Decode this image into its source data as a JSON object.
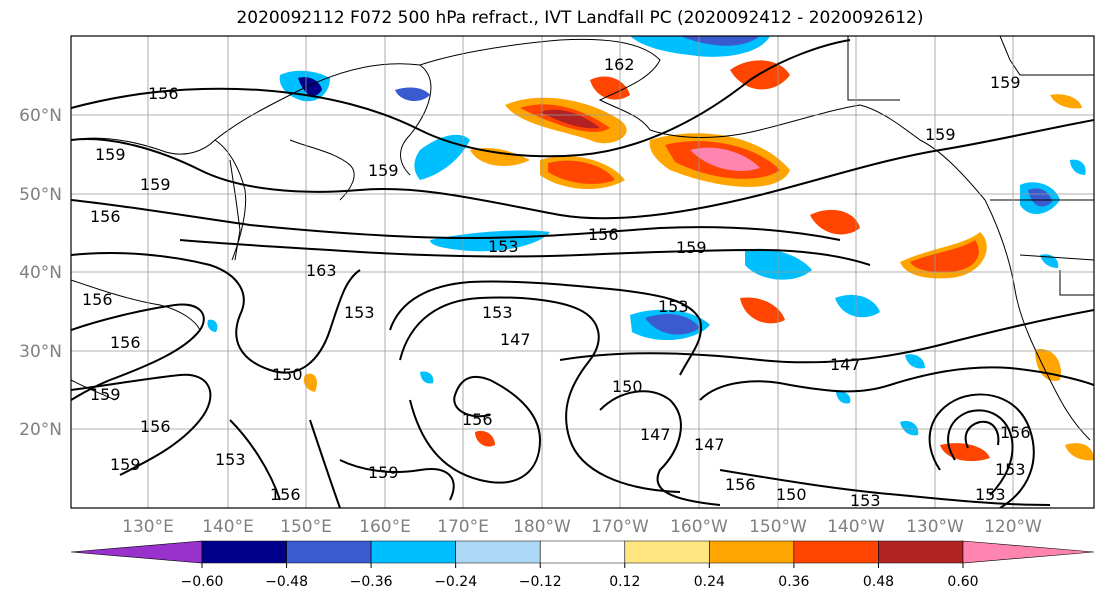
{
  "title": "2020092112 F072 500 hPa refract., IVT Landfall PC (2020092412 - 2020092612)",
  "lat_labels": [
    "60°N",
    "50°N",
    "40°N",
    "30°N",
    "20°N"
  ],
  "lon_labels": [
    "130°E",
    "140°E",
    "150°E",
    "160°E",
    "170°E",
    "180°W",
    "170°W",
    "160°W",
    "150°W",
    "140°W",
    "130°W",
    "120°W"
  ],
  "contour_labels": [
    "156",
    "162",
    "159",
    "159",
    "159",
    "159",
    "156",
    "159",
    "156",
    "153",
    "156",
    "159",
    "163",
    "153",
    "153",
    "156",
    "147",
    "153",
    "150",
    "147",
    "150",
    "156",
    "147",
    "147",
    "159",
    "159",
    "156",
    "153",
    "156",
    "159",
    "156",
    "150",
    "153",
    "156",
    "153",
    "153"
  ],
  "colorbar": {
    "colors": [
      "#9932cc",
      "#00008b",
      "#3a5bcf",
      "#00bfff",
      "#add8f5",
      "#ffffff",
      "#ffe680",
      "#ffa500",
      "#ff4500",
      "#b22222",
      "#ff85b0"
    ],
    "tick_labels": [
      "−0.60",
      "−0.48",
      "−0.36",
      "−0.24",
      "−0.12",
      "0.12",
      "0.24",
      "0.36",
      "0.48",
      "0.60"
    ]
  }
}
